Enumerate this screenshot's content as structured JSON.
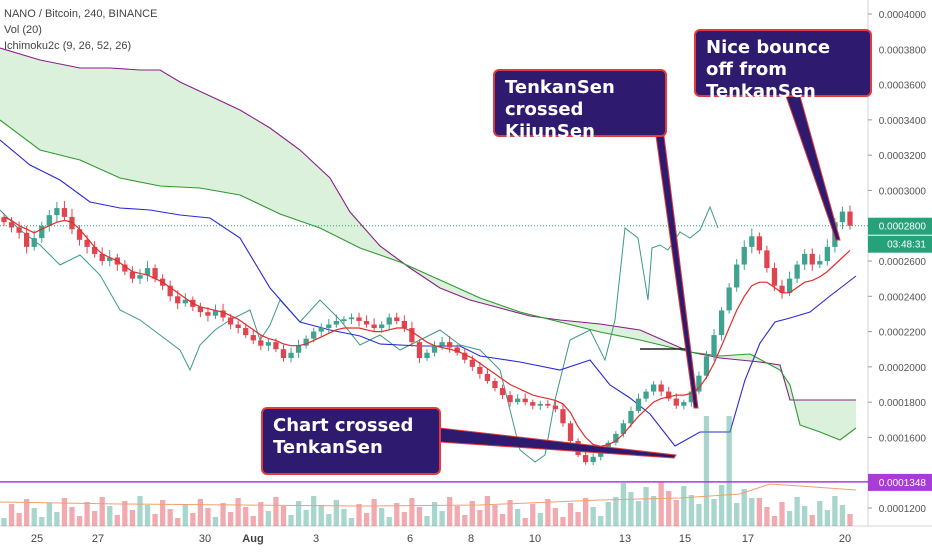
{
  "legend": {
    "symbol": "NANO / Bitcoin, 240, BINANCE",
    "volume": "Vol (20)",
    "ichimoku": "Ichimoku2c (9, 26, 52, 26)"
  },
  "price_axis": {
    "labels": [
      "0.0004000",
      "0.0003800",
      "0.0003600",
      "0.0003400",
      "0.0003200",
      "0.0003000",
      "0.0002600",
      "0.0002400",
      "0.0002200",
      "0.0002000",
      "0.0001800",
      "0.0001600",
      "0.0001200"
    ],
    "current_price": "0.0002800",
    "countdown": "03:48:31",
    "line_price": "0.0001348"
  },
  "time_axis": {
    "labels": [
      "25",
      "27",
      "30",
      "Aug",
      "3",
      "6",
      "8",
      "10",
      "13",
      "15",
      "17",
      "20"
    ]
  },
  "callouts": {
    "tenkan_kijun": "TenkanSen crossed KijunSen",
    "bounce": "Nice bounce off from TenkanSen",
    "chart_cross": "Chart crossed TenkanSen"
  },
  "colors": {
    "candle_up": "#3fa38f",
    "candle_down": "#e04450",
    "tenkan": "#e52b2b",
    "kijun": "#2a2ad8",
    "chikou": "#3a9a88",
    "senkou_a": "#2f9a2f",
    "senkou_b": "#8a1f8a",
    "cloud_fill": "#d8f0d8",
    "callout_bg": "#2e1a6e",
    "callout_border": "#e23b3b",
    "price_tag_green": "#26a27a",
    "price_tag_purple": "#a93bd6"
  },
  "chart_data": {
    "type": "candlestick",
    "title": "NANO / Bitcoin, 240, BINANCE",
    "ylim": [
      0.000115,
      0.00041
    ],
    "x_ticks": [
      "25",
      "27",
      "30",
      "Aug",
      "3",
      "6",
      "8",
      "10",
      "13",
      "15",
      "17",
      "20"
    ],
    "closes": [
      0.000282,
      0.000279,
      0.000276,
      0.000268,
      0.000273,
      0.00028,
      0.000286,
      0.00029,
      0.000285,
      0.000278,
      0.000272,
      0.000268,
      0.000264,
      0.00026,
      0.000262,
      0.000258,
      0.000254,
      0.00025,
      0.000252,
      0.000256,
      0.00025,
      0.000246,
      0.00024,
      0.000236,
      0.000238,
      0.000234,
      0.000231,
      0.000229,
      0.000232,
      0.000228,
      0.000224,
      0.000222,
      0.000218,
      0.000215,
      0.000212,
      0.000214,
      0.00021,
      0.000205,
      0.000208,
      0.000212,
      0.000216,
      0.00022,
      0.000222,
      0.000224,
      0.000226,
      0.000227,
      0.000228,
      0.000226,
      0.000224,
      0.000222,
      0.000224,
      0.000228,
      0.000226,
      0.000222,
      0.000214,
      0.000205,
      0.000208,
      0.000212,
      0.000214,
      0.000211,
      0.000208,
      0.000204,
      0.0002,
      0.000196,
      0.000192,
      0.000188,
      0.000184,
      0.00018,
      0.000182,
      0.00018,
      0.000178,
      0.000179,
      0.000178,
      0.000176,
      0.000168,
      0.000158,
      0.00015,
      0.000146,
      0.000149,
      0.000152,
      0.000157,
      0.000162,
      0.000168,
      0.000175,
      0.000182,
      0.000186,
      0.00019,
      0.000186,
      0.000182,
      0.000178,
      0.00018,
      0.000186,
      0.000195,
      0.000206,
      0.000218,
      0.000232,
      0.000245,
      0.000258,
      0.000268,
      0.000274,
      0.000266,
      0.000256,
      0.000246,
      0.000242,
      0.00025,
      0.000258,
      0.000264,
      0.000258,
      0.00026,
      0.000268,
      0.000282,
      0.000288,
      0.00028
    ],
    "tenkan": [
      0.000285,
      0.000283,
      0.00028,
      0.000278,
      0.000276,
      0.000278,
      0.00028,
      0.000282,
      0.000283,
      0.000282,
      0.000278,
      0.000273,
      0.000268,
      0.000264,
      0.000262,
      0.00026,
      0.000257,
      0.000254,
      0.000253,
      0.000252,
      0.00025,
      0.000248,
      0.000245,
      0.000242,
      0.000239,
      0.000236,
      0.000234,
      0.000233,
      0.000232,
      0.000231,
      0.000229,
      0.000227,
      0.000224,
      0.000221,
      0.000218,
      0.000216,
      0.000215,
      0.000213,
      0.000212,
      0.000212,
      0.000213,
      0.000215,
      0.000217,
      0.000219,
      0.000221,
      0.000222,
      0.000222,
      0.000222,
      0.000221,
      0.00022,
      0.00022,
      0.000221,
      0.000222,
      0.000222,
      0.00022,
      0.000217,
      0.000214,
      0.000212,
      0.000211,
      0.00021,
      0.000209,
      0.000207,
      0.000205,
      0.000202,
      0.000199,
      0.000196,
      0.000193,
      0.00019,
      0.000188,
      0.000186,
      0.000184,
      0.000183,
      0.000182,
      0.000181,
      0.000179,
      0.000174,
      0.000166,
      0.00016,
      0.000156,
      0.000155,
      0.000156,
      0.000158,
      0.000162,
      0.000167,
      0.000172,
      0.000176,
      0.00018,
      0.000182,
      0.000183,
      0.000184,
      0.000184,
      0.000185,
      0.000188,
      0.000194,
      0.000202,
      0.000212,
      0.000222,
      0.000232,
      0.00024,
      0.000246,
      0.000248,
      0.000248,
      0.000245,
      0.000242,
      0.000242,
      0.000245,
      0.000248,
      0.000249,
      0.000251,
      0.000254,
      0.000258,
      0.000262,
      0.000266
    ]
  }
}
